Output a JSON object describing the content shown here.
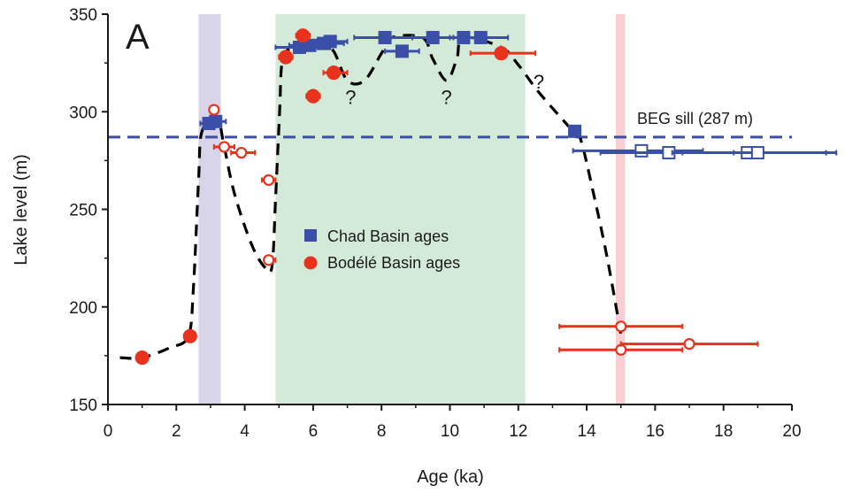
{
  "chart_data": {
    "type": "scatter",
    "panel_label": "A",
    "xlabel": "Age (ka)",
    "ylabel": "Lake level (m)",
    "xlim": [
      0,
      20
    ],
    "ylim": [
      150,
      350
    ],
    "x_ticks": [
      0,
      2,
      4,
      6,
      8,
      10,
      12,
      14,
      16,
      18,
      20
    ],
    "y_ticks": [
      150,
      200,
      250,
      300,
      350
    ],
    "grid": false,
    "legend_position": "center",
    "bands": [
      {
        "x0": 2.65,
        "x1": 3.3,
        "color": "#d8d4ea"
      },
      {
        "x0": 4.9,
        "x1": 12.2,
        "color": "#d4ead8"
      },
      {
        "x0": 14.85,
        "x1": 15.12,
        "color": "#f7cfd2"
      }
    ],
    "sill": {
      "label": "BEG sill (287 m)",
      "y": 287,
      "color": "#3a4fa8"
    },
    "reconstruction": {
      "points": [
        [
          0.35,
          174
        ],
        [
          1,
          174
        ],
        [
          1.8,
          179
        ],
        [
          2.35,
          185
        ],
        [
          2.5,
          210
        ],
        [
          2.65,
          265
        ],
        [
          2.75,
          290
        ],
        [
          3.2,
          296
        ],
        [
          3.4,
          282
        ],
        [
          3.7,
          258
        ],
        [
          4.2,
          232
        ],
        [
          4.6,
          220
        ],
        [
          4.8,
          221
        ],
        [
          4.9,
          255
        ],
        [
          5.02,
          300
        ],
        [
          5.1,
          326
        ],
        [
          5.4,
          333
        ],
        [
          6.2,
          336
        ],
        [
          6.6,
          331
        ],
        [
          7,
          316
        ],
        [
          7.5,
          316
        ],
        [
          8,
          330
        ],
        [
          8.3,
          338
        ],
        [
          9.2,
          338
        ],
        [
          9.5,
          327
        ],
        [
          9.9,
          316
        ],
        [
          10.2,
          327
        ],
        [
          10.4,
          338
        ],
        [
          11.5,
          333
        ],
        [
          12,
          324
        ],
        [
          12.6,
          310
        ],
        [
          13.5,
          292
        ],
        [
          13.8,
          287
        ],
        [
          14.2,
          258
        ],
        [
          14.6,
          225
        ],
        [
          15,
          186
        ]
      ],
      "color": "#000000"
    },
    "question_marks": [
      {
        "text": "?",
        "x": 7.1,
        "y": 304
      },
      {
        "text": "?",
        "x": 9.9,
        "y": 304
      },
      {
        "text": "?",
        "x": 12.6,
        "y": 312
      }
    ],
    "series": [
      {
        "name": "Chad Basin ages",
        "marker": "square",
        "color": "#3a4fa8",
        "points": [
          {
            "x": 2.95,
            "y": 294,
            "xerr_lo": 2.7,
            "xerr_hi": 3.3,
            "filled": true
          },
          {
            "x": 3.15,
            "y": 295,
            "xerr_lo": 2.85,
            "xerr_hi": 3.45,
            "filled": true
          },
          {
            "x": 5.6,
            "y": 333,
            "xerr_lo": 4.9,
            "xerr_hi": 6.5,
            "filled": true
          },
          {
            "x": 5.9,
            "y": 334,
            "xerr_lo": 5.3,
            "xerr_hi": 6.6,
            "filled": true
          },
          {
            "x": 6.3,
            "y": 335,
            "xerr_lo": 5.8,
            "xerr_hi": 6.9,
            "filled": true
          },
          {
            "x": 6.5,
            "y": 336,
            "xerr_lo": 6.1,
            "xerr_hi": 7.0,
            "filled": true
          },
          {
            "x": 8.1,
            "y": 338,
            "xerr_lo": 7.2,
            "xerr_hi": 8.9,
            "filled": true
          },
          {
            "x": 8.6,
            "y": 331,
            "xerr_lo": 8.1,
            "xerr_hi": 9.1,
            "filled": true
          },
          {
            "x": 9.5,
            "y": 338,
            "xerr_lo": 8.9,
            "xerr_hi": 10.1,
            "filled": true
          },
          {
            "x": 10.4,
            "y": 338,
            "xerr_lo": 10.0,
            "xerr_hi": 10.9,
            "filled": true
          },
          {
            "x": 10.9,
            "y": 338,
            "xerr_lo": 10.3,
            "xerr_hi": 11.7,
            "filled": true
          },
          {
            "x": 13.65,
            "y": 290,
            "xerr_lo": 13.5,
            "xerr_hi": 13.8,
            "filled": true
          },
          {
            "x": 15.6,
            "y": 280,
            "xerr_lo": 13.6,
            "xerr_hi": 17.4,
            "filled": false
          },
          {
            "x": 16.4,
            "y": 279,
            "xerr_lo": 14.4,
            "xerr_hi": 18.3,
            "filled": false
          },
          {
            "x": 18.7,
            "y": 279,
            "xerr_lo": 16.5,
            "xerr_hi": 21.0,
            "filled": false
          },
          {
            "x": 19.0,
            "y": 279,
            "xerr_lo": 16.8,
            "xerr_hi": 21.3,
            "filled": false
          }
        ]
      },
      {
        "name": "Bodélé Basin ages",
        "marker": "circle",
        "color": "#e8321e",
        "points": [
          {
            "x": 1.0,
            "y": 174,
            "filled": true
          },
          {
            "x": 2.4,
            "y": 185,
            "filled": true
          },
          {
            "x": 3.1,
            "y": 301,
            "filled": false
          },
          {
            "x": 3.4,
            "y": 282,
            "xerr_lo": 3.1,
            "xerr_hi": 3.7,
            "filled": false
          },
          {
            "x": 3.9,
            "y": 279,
            "xerr_lo": 3.6,
            "xerr_hi": 4.3,
            "filled": false
          },
          {
            "x": 4.7,
            "y": 265,
            "xerr_lo": 4.5,
            "xerr_hi": 4.9,
            "filled": false
          },
          {
            "x": 4.7,
            "y": 224,
            "xerr_lo": 4.6,
            "xerr_hi": 4.9,
            "filled": false
          },
          {
            "x": 5.2,
            "y": 328,
            "xerr_lo": 5.0,
            "xerr_hi": 5.4,
            "filled": true
          },
          {
            "x": 5.7,
            "y": 339,
            "xerr_lo": 5.5,
            "xerr_hi": 5.9,
            "filled": true
          },
          {
            "x": 6.0,
            "y": 308,
            "xerr_lo": 5.8,
            "xerr_hi": 6.2,
            "filled": true
          },
          {
            "x": 6.6,
            "y": 320,
            "xerr_lo": 6.3,
            "xerr_hi": 7.0,
            "filled": true
          },
          {
            "x": 11.5,
            "y": 330,
            "xerr_lo": 10.6,
            "xerr_hi": 12.5,
            "filled": true
          },
          {
            "x": 15.0,
            "y": 190,
            "xerr_lo": 13.2,
            "xerr_hi": 16.8,
            "filled": false
          },
          {
            "x": 15.0,
            "y": 178,
            "xerr_lo": 13.2,
            "xerr_hi": 16.8,
            "filled": false
          },
          {
            "x": 17.0,
            "y": 181,
            "xerr_lo": 15.0,
            "xerr_hi": 19.0,
            "filled": false
          }
        ]
      }
    ]
  }
}
